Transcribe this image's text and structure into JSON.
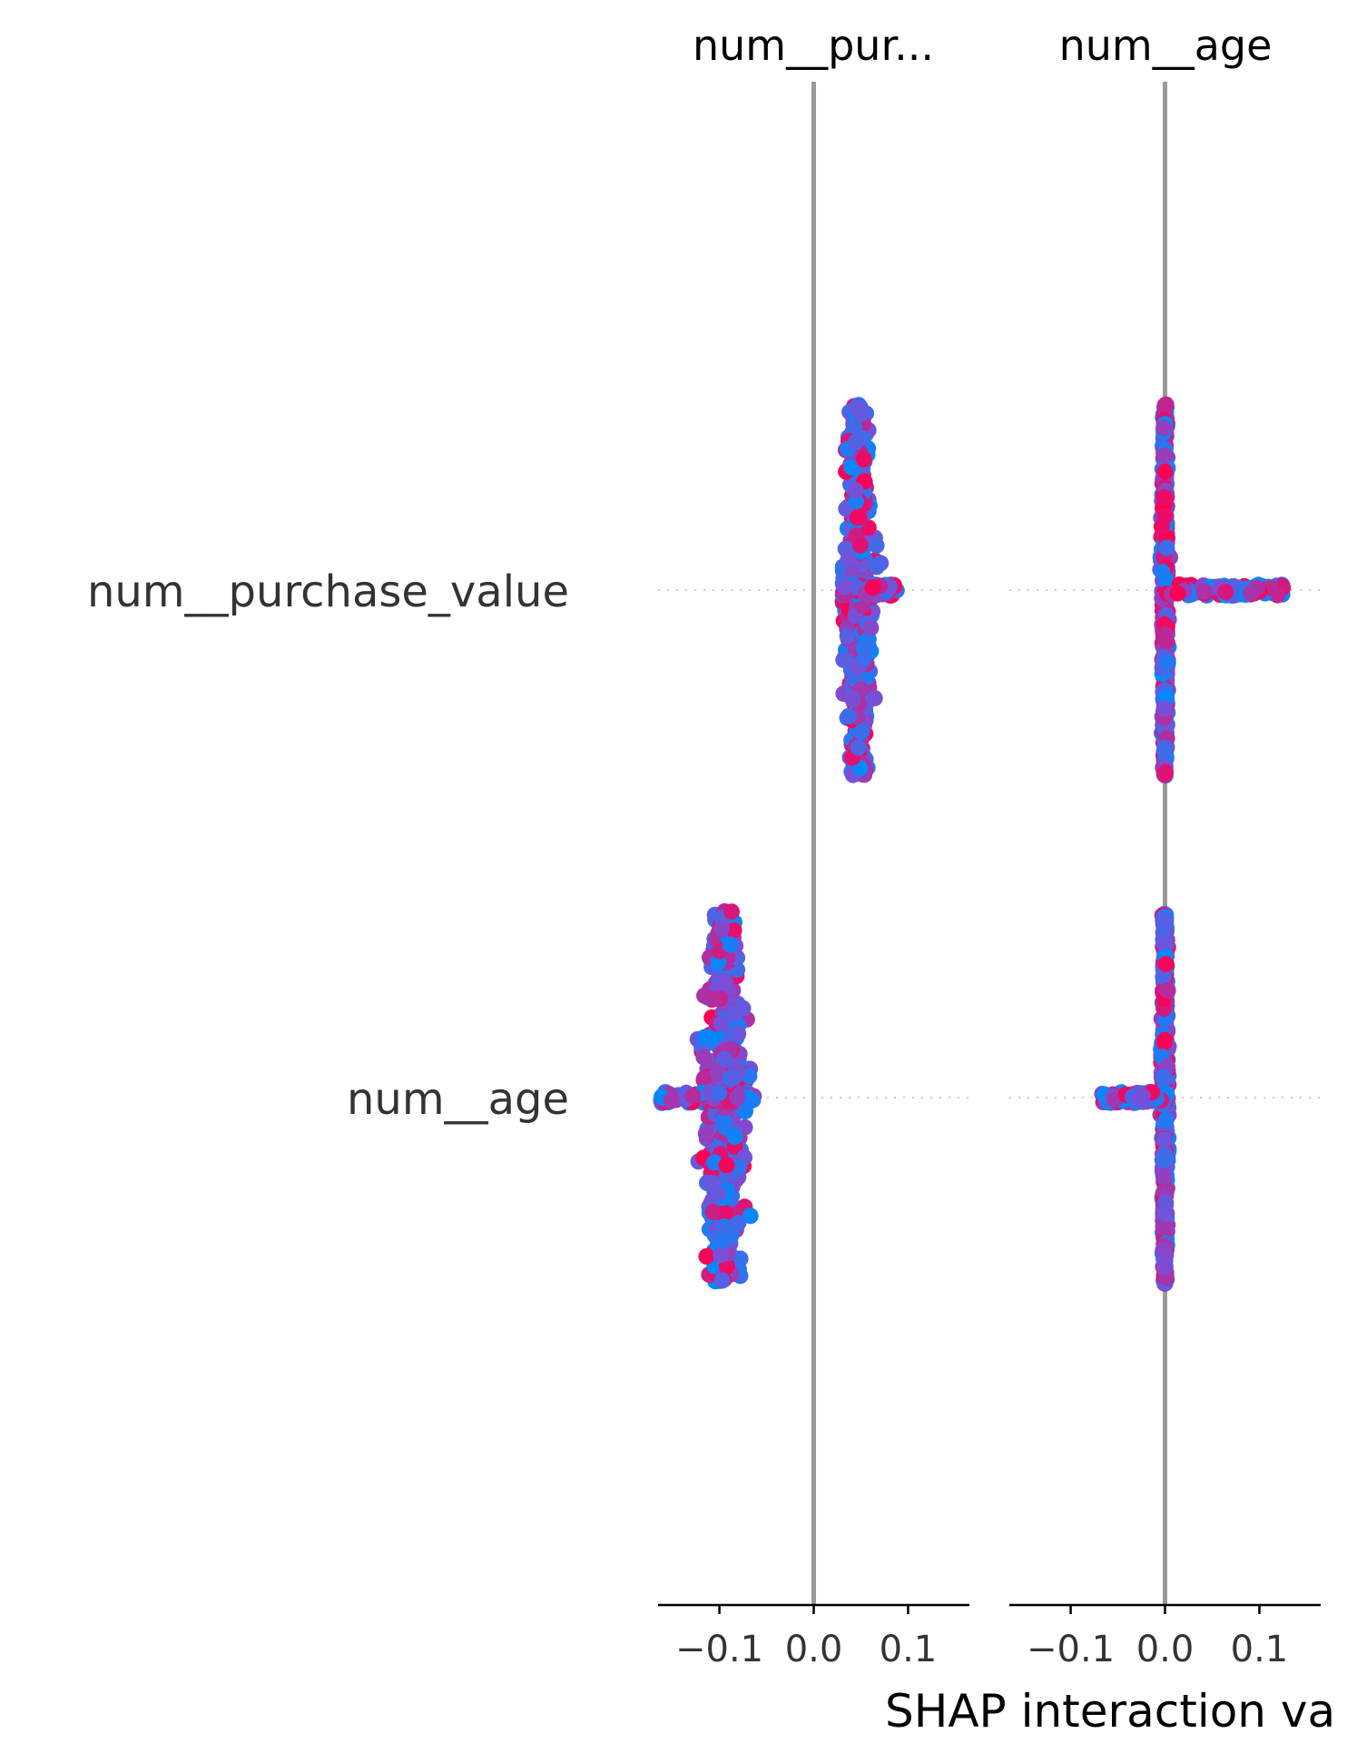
{
  "chart_data": {
    "type": "scatter",
    "subtype": "shap-interaction-summary",
    "xlabel": "SHAP interaction va",
    "rows": [
      "num__purchase_value",
      "num__age"
    ],
    "columns": [
      "num__pur...",
      "num__age"
    ],
    "xlim": [
      -0.165,
      0.165
    ],
    "xticks": [
      -0.1,
      0.0,
      0.1
    ],
    "xtick_labels": [
      "−0.1",
      "0.0",
      "0.1"
    ],
    "color_scale": {
      "low": "#008afb",
      "mid": "#7a4fd8",
      "high": "#ff0052"
    },
    "zero_line_color": "#999999",
    "grid": false,
    "cells": [
      {
        "row": "num__purchase_value",
        "column": "num__pur...",
        "center": 0.047,
        "spread": 0.018,
        "min": 0.031,
        "max": 0.088
      },
      {
        "row": "num__purchase_value",
        "column": "num__age",
        "center": 0.0,
        "spread": 0.004,
        "min": -0.03,
        "max": 0.125,
        "tail_side": "positive",
        "tail_extent": 0.125
      },
      {
        "row": "num__age",
        "column": "num__pur...",
        "center": -0.095,
        "spread": 0.025,
        "min": -0.163,
        "max": -0.063
      },
      {
        "row": "num__age",
        "column": "num__age",
        "center": 0.0,
        "spread": 0.004,
        "min": -0.068,
        "max": 0.018,
        "tail_side": "negative",
        "tail_extent": -0.068
      }
    ]
  }
}
